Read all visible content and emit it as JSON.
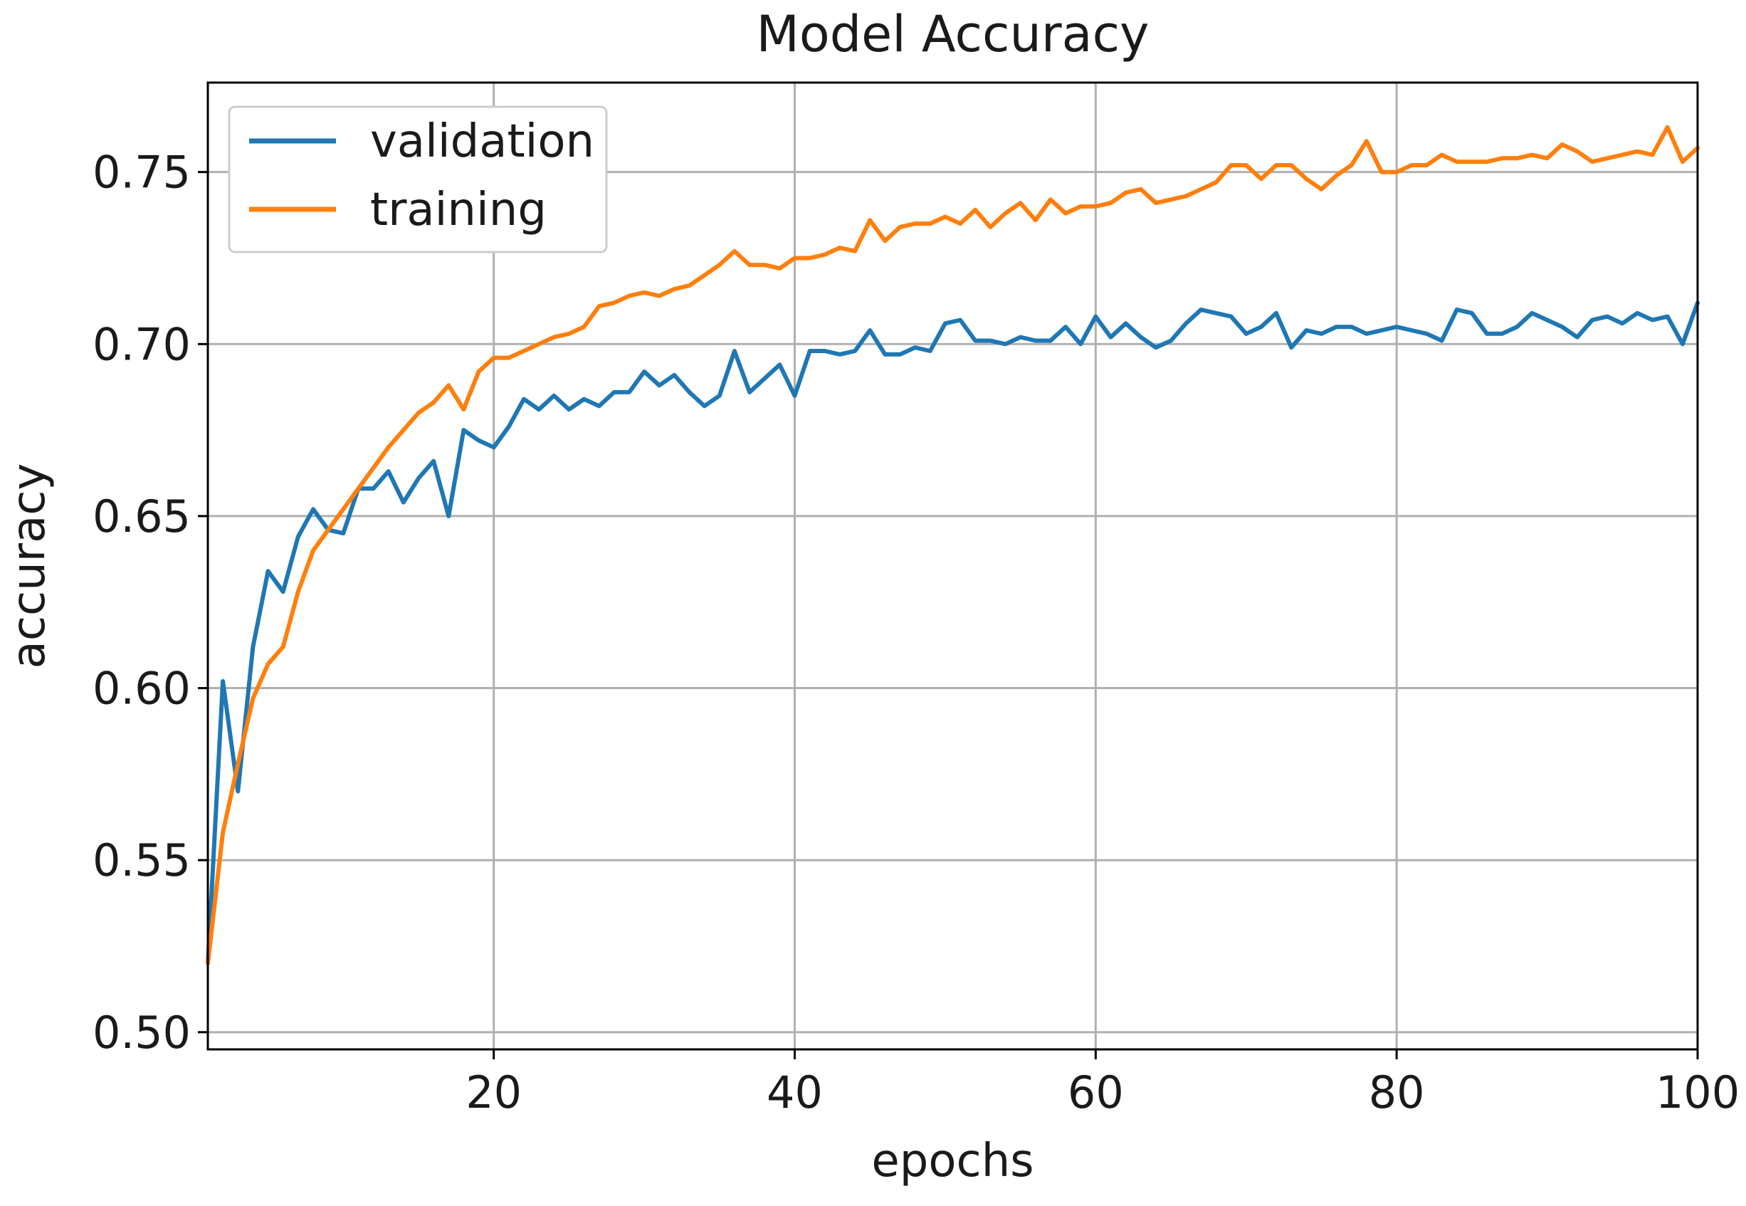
{
  "chart_data": {
    "type": "line",
    "title": "Model Accuracy",
    "xlabel": "epochs",
    "ylabel": "accuracy",
    "xlim": [
      1,
      100
    ],
    "ylim": [
      0.495,
      0.776
    ],
    "xticks": [
      20,
      40,
      60,
      80,
      100
    ],
    "xtick_labels": [
      "20",
      "40",
      "60",
      "80",
      "100"
    ],
    "yticks": [
      0.5,
      0.55,
      0.6,
      0.65,
      0.7,
      0.75
    ],
    "ytick_labels": [
      "0.50",
      "0.55",
      "0.60",
      "0.65",
      "0.70",
      "0.75"
    ],
    "grid": true,
    "legend": "top-left",
    "x": [
      1,
      2,
      3,
      4,
      5,
      6,
      7,
      8,
      9,
      10,
      11,
      12,
      13,
      14,
      15,
      16,
      17,
      18,
      19,
      20,
      21,
      22,
      23,
      24,
      25,
      26,
      27,
      28,
      29,
      30,
      31,
      32,
      33,
      34,
      35,
      36,
      37,
      38,
      39,
      40,
      41,
      42,
      43,
      44,
      45,
      46,
      47,
      48,
      49,
      50,
      51,
      52,
      53,
      54,
      55,
      56,
      57,
      58,
      59,
      60,
      61,
      62,
      63,
      64,
      65,
      66,
      67,
      68,
      69,
      70,
      71,
      72,
      73,
      74,
      75,
      76,
      77,
      78,
      79,
      80,
      81,
      82,
      83,
      84,
      85,
      86,
      87,
      88,
      89,
      90,
      91,
      92,
      93,
      94,
      95,
      96,
      97,
      98,
      99,
      100
    ],
    "series": [
      {
        "name": "validation",
        "color": "#1f77b4",
        "values": [
          0.52,
          0.602,
          0.57,
          0.612,
          0.634,
          0.628,
          0.644,
          0.652,
          0.646,
          0.645,
          0.658,
          0.658,
          0.663,
          0.654,
          0.661,
          0.666,
          0.65,
          0.675,
          0.672,
          0.67,
          0.676,
          0.684,
          0.681,
          0.685,
          0.681,
          0.684,
          0.682,
          0.686,
          0.686,
          0.692,
          0.688,
          0.691,
          0.686,
          0.682,
          0.685,
          0.698,
          0.686,
          0.69,
          0.694,
          0.685,
          0.698,
          0.698,
          0.697,
          0.698,
          0.704,
          0.697,
          0.697,
          0.699,
          0.698,
          0.706,
          0.707,
          0.701,
          0.701,
          0.7,
          0.702,
          0.701,
          0.701,
          0.705,
          0.7,
          0.708,
          0.702,
          0.706,
          0.702,
          0.699,
          0.701,
          0.706,
          0.71,
          0.709,
          0.708,
          0.703,
          0.705,
          0.709,
          0.699,
          0.704,
          0.703,
          0.705,
          0.705,
          0.703,
          0.704,
          0.705,
          0.704,
          0.703,
          0.701,
          0.71,
          0.709,
          0.703,
          0.703,
          0.705,
          0.709,
          0.707,
          0.705,
          0.702,
          0.707,
          0.708,
          0.706,
          0.709,
          0.707,
          0.708,
          0.7,
          0.712
        ]
      },
      {
        "name": "training",
        "color": "#ff7f0e",
        "values": [
          0.52,
          0.558,
          0.578,
          0.597,
          0.607,
          0.612,
          0.628,
          0.64,
          0.646,
          0.652,
          0.658,
          0.664,
          0.67,
          0.675,
          0.68,
          0.683,
          0.688,
          0.681,
          0.692,
          0.696,
          0.696,
          0.698,
          0.7,
          0.702,
          0.703,
          0.705,
          0.711,
          0.712,
          0.714,
          0.715,
          0.714,
          0.716,
          0.717,
          0.72,
          0.723,
          0.727,
          0.723,
          0.723,
          0.722,
          0.725,
          0.725,
          0.726,
          0.728,
          0.727,
          0.736,
          0.73,
          0.734,
          0.735,
          0.735,
          0.737,
          0.735,
          0.739,
          0.734,
          0.738,
          0.741,
          0.736,
          0.742,
          0.738,
          0.74,
          0.74,
          0.741,
          0.744,
          0.745,
          0.741,
          0.742,
          0.743,
          0.745,
          0.747,
          0.752,
          0.752,
          0.748,
          0.752,
          0.752,
          0.748,
          0.745,
          0.749,
          0.752,
          0.759,
          0.75,
          0.75,
          0.752,
          0.752,
          0.755,
          0.753,
          0.753,
          0.753,
          0.754,
          0.754,
          0.755,
          0.754,
          0.758,
          0.756,
          0.753,
          0.754,
          0.755,
          0.756,
          0.755,
          0.763,
          0.753,
          0.757
        ]
      }
    ]
  }
}
